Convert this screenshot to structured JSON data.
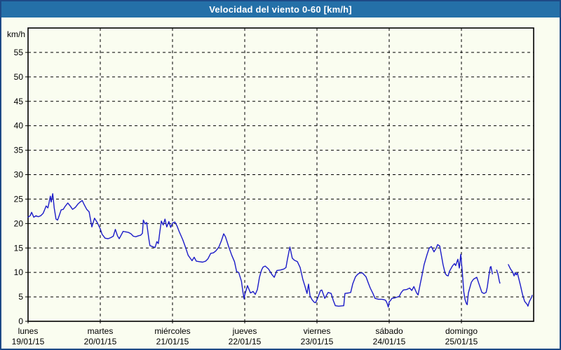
{
  "window": {
    "title": "Velocidad del viento 0-60 [km/h]"
  },
  "colors": {
    "titlebar_blue": "#2470a8",
    "window_border_navy": "#1e4a86",
    "background_ivory": "#fafdf0",
    "line_blue": "#1b1bc8",
    "grid_black": "#000000",
    "title_text": "#ffffff"
  },
  "chart_data": {
    "type": "line",
    "title": "Velocidad del viento 0-60 [km/h]",
    "y_unit_label": "km/h",
    "ylim": [
      0,
      60
    ],
    "y_tick_step": 5,
    "y_tick_labels": [
      0,
      5,
      10,
      15,
      20,
      25,
      30,
      35,
      40,
      45,
      50,
      55
    ],
    "grid": "dashed",
    "legend": "none",
    "line_color": "#1b1bc8",
    "x_unit": "hours since lunes 19/01/15 00:00",
    "x_range_hours": [
      0,
      168
    ],
    "x_axis_days": [
      {
        "label": "lunes",
        "date": "19/01/15"
      },
      {
        "label": "martes",
        "date": "20/01/15"
      },
      {
        "label": "miércoles",
        "date": "21/01/15"
      },
      {
        "label": "jueves",
        "date": "22/01/15"
      },
      {
        "label": "viernes",
        "date": "23/01/15"
      },
      {
        "label": "sábado",
        "date": "24/01/15"
      },
      {
        "label": "domingo",
        "date": "25/01/15"
      }
    ],
    "segments": [
      [
        [
          0,
          21.3
        ],
        [
          0.7,
          21.6
        ],
        [
          1.2,
          22.3
        ],
        [
          1.9,
          21.3
        ],
        [
          2.6,
          21.6
        ],
        [
          3.4,
          21.4
        ],
        [
          4.2,
          21.6
        ],
        [
          5.0,
          22.1
        ],
        [
          5.5,
          22.8
        ],
        [
          6.0,
          23.6
        ],
        [
          6.6,
          23.2
        ],
        [
          7.0,
          24.3
        ],
        [
          7.4,
          25.6
        ],
        [
          7.7,
          24.4
        ],
        [
          8.2,
          26.1
        ],
        [
          8.7,
          23.2
        ],
        [
          9.3,
          20.9
        ],
        [
          9.8,
          20.7
        ],
        [
          10.4,
          21.7
        ],
        [
          11.0,
          22.8
        ],
        [
          11.7,
          22.9
        ],
        [
          12.3,
          23.5
        ],
        [
          13.2,
          24.2
        ],
        [
          14.0,
          23.6
        ],
        [
          14.8,
          22.9
        ],
        [
          15.7,
          23.3
        ],
        [
          16.6,
          24.0
        ],
        [
          17.5,
          24.5
        ],
        [
          18.0,
          24.7
        ],
        [
          18.7,
          23.8
        ],
        [
          19.5,
          22.9
        ],
        [
          20.3,
          22.4
        ],
        [
          21.2,
          19.3
        ],
        [
          22.1,
          21.1
        ],
        [
          23.0,
          20.2
        ],
        [
          24.0,
          18.9
        ],
        [
          24.6,
          17.8
        ],
        [
          25.6,
          17.0
        ],
        [
          26.6,
          16.9
        ],
        [
          27.4,
          17.1
        ],
        [
          28.3,
          17.4
        ],
        [
          29.0,
          18.8
        ],
        [
          29.7,
          17.5
        ],
        [
          30.3,
          16.9
        ],
        [
          31.0,
          17.7
        ],
        [
          31.6,
          18.4
        ],
        [
          32.4,
          18.3
        ],
        [
          33.3,
          18.2
        ],
        [
          34.2,
          17.9
        ],
        [
          35.0,
          17.4
        ],
        [
          35.8,
          17.3
        ],
        [
          36.7,
          17.5
        ],
        [
          37.4,
          17.6
        ],
        [
          38.0,
          18.0
        ],
        [
          38.3,
          20.7
        ],
        [
          38.9,
          19.9
        ],
        [
          39.4,
          20.2
        ],
        [
          40.1,
          17.0
        ],
        [
          40.5,
          15.5
        ],
        [
          41.3,
          15.3
        ],
        [
          42.2,
          15.1
        ],
        [
          42.8,
          16.3
        ],
        [
          43.3,
          15.9
        ],
        [
          43.8,
          18.4
        ],
        [
          44.3,
          20.5
        ],
        [
          44.9,
          19.7
        ],
        [
          45.5,
          20.9
        ],
        [
          46.1,
          19.3
        ],
        [
          46.8,
          20.4
        ],
        [
          47.4,
          19.2
        ],
        [
          48.0,
          20.1
        ],
        [
          48.8,
          20.3
        ],
        [
          49.5,
          19.5
        ],
        [
          50.2,
          18.4
        ],
        [
          51.4,
          16.7
        ],
        [
          52.4,
          15.0
        ],
        [
          53.2,
          13.5
        ],
        [
          53.9,
          12.9
        ],
        [
          54.5,
          12.4
        ],
        [
          55.2,
          13.1
        ],
        [
          55.9,
          12.3
        ],
        [
          56.9,
          12.2
        ],
        [
          58.0,
          12.1
        ],
        [
          59.0,
          12.3
        ],
        [
          59.8,
          12.8
        ],
        [
          60.7,
          13.9
        ],
        [
          61.6,
          14.0
        ],
        [
          62.4,
          14.4
        ],
        [
          63.4,
          15.2
        ],
        [
          64.2,
          16.4
        ],
        [
          65.0,
          17.9
        ],
        [
          65.6,
          17.3
        ],
        [
          66.6,
          15.4
        ],
        [
          67.7,
          13.5
        ],
        [
          68.6,
          12.2
        ],
        [
          69.3,
          10.2
        ],
        [
          70.0,
          10.0
        ],
        [
          70.9,
          8.2
        ],
        [
          71.4,
          6.0
        ],
        [
          71.8,
          4.6
        ],
        [
          72.0,
          5.4
        ],
        [
          72.9,
          7.3
        ],
        [
          73.9,
          5.8
        ],
        [
          74.8,
          6.1
        ],
        [
          75.5,
          5.5
        ],
        [
          76.2,
          6.5
        ],
        [
          76.9,
          9.0
        ],
        [
          77.6,
          10.5
        ],
        [
          78.1,
          11.1
        ],
        [
          78.8,
          11.3
        ],
        [
          79.9,
          10.7
        ],
        [
          81.1,
          9.5
        ],
        [
          81.8,
          9.0
        ],
        [
          82.7,
          10.4
        ],
        [
          83.9,
          10.5
        ],
        [
          85.0,
          10.7
        ],
        [
          85.7,
          11.0
        ],
        [
          86.2,
          12.7
        ],
        [
          87.0,
          15.2
        ],
        [
          87.8,
          12.9
        ],
        [
          88.5,
          12.5
        ],
        [
          89.5,
          12.2
        ],
        [
          90.4,
          11.0
        ],
        [
          91.3,
          8.6
        ],
        [
          92.0,
          7.2
        ],
        [
          92.7,
          5.7
        ],
        [
          93.2,
          7.6
        ],
        [
          93.7,
          5.2
        ],
        [
          94.4,
          4.4
        ],
        [
          95.1,
          3.9
        ],
        [
          95.5,
          3.8
        ],
        [
          96.0,
          4.4
        ],
        [
          97.2,
          6.3
        ],
        [
          97.6,
          6.4
        ],
        [
          98.6,
          4.7
        ],
        [
          99.7,
          5.9
        ],
        [
          100.7,
          5.7
        ],
        [
          101.4,
          4.3
        ],
        [
          102.1,
          3.2
        ],
        [
          103.2,
          3.1
        ],
        [
          104.9,
          3.2
        ],
        [
          105.3,
          5.7
        ],
        [
          106.5,
          5.8
        ],
        [
          107.2,
          5.9
        ],
        [
          107.9,
          7.7
        ],
        [
          108.8,
          9.1
        ],
        [
          109.5,
          9.6
        ],
        [
          110.2,
          9.9
        ],
        [
          111.1,
          9.9
        ],
        [
          112.3,
          9.1
        ],
        [
          113.0,
          7.9
        ],
        [
          113.7,
          6.8
        ],
        [
          114.6,
          5.7
        ],
        [
          115.3,
          4.7
        ],
        [
          116.5,
          4.5
        ],
        [
          117.7,
          4.5
        ],
        [
          118.4,
          4.4
        ],
        [
          118.8,
          4.3
        ],
        [
          119.3,
          3.7
        ],
        [
          119.7,
          2.9
        ],
        [
          120.0,
          4.0
        ],
        [
          120.5,
          4.3
        ],
        [
          120.9,
          4.7
        ],
        [
          121.9,
          4.8
        ],
        [
          123.3,
          5.1
        ],
        [
          124.0,
          5.9
        ],
        [
          124.7,
          6.4
        ],
        [
          125.8,
          6.5
        ],
        [
          126.8,
          6.8
        ],
        [
          127.5,
          6.3
        ],
        [
          128.2,
          7.1
        ],
        [
          129.1,
          5.8
        ],
        [
          129.6,
          5.4
        ],
        [
          130.3,
          7.6
        ],
        [
          130.9,
          9.4
        ],
        [
          131.6,
          11.6
        ],
        [
          132.6,
          13.7
        ],
        [
          133.3,
          15.0
        ],
        [
          134.0,
          15.3
        ],
        [
          134.9,
          14.2
        ],
        [
          135.6,
          14.9
        ],
        [
          136.1,
          15.7
        ],
        [
          136.8,
          15.4
        ],
        [
          137.2,
          14.0
        ],
        [
          137.9,
          11.6
        ],
        [
          138.6,
          9.8
        ],
        [
          139.1,
          9.4
        ],
        [
          139.6,
          9.3
        ],
        [
          140.0,
          10.2
        ],
        [
          141.0,
          11.3
        ],
        [
          141.7,
          11.8
        ],
        [
          142.1,
          11.4
        ],
        [
          142.8,
          12.7
        ],
        [
          143.3,
          10.9
        ],
        [
          143.8,
          13.7
        ],
        [
          144.3,
          10.0
        ],
        [
          144.8,
          6.0
        ],
        [
          145.2,
          4.5
        ],
        [
          145.6,
          3.7
        ],
        [
          145.9,
          3.4
        ],
        [
          146.3,
          5.8
        ],
        [
          147.3,
          8.0
        ],
        [
          148.0,
          8.6
        ],
        [
          149.1,
          9.0
        ],
        [
          149.8,
          7.7
        ],
        [
          150.8,
          5.9
        ],
        [
          151.5,
          5.7
        ],
        [
          152.2,
          5.9
        ],
        [
          152.6,
          7.0
        ],
        [
          153.1,
          9.3
        ],
        [
          153.6,
          11.1
        ],
        [
          153.8,
          11.2
        ],
        [
          154.3,
          9.7
        ]
      ],
      [
        [
          155.7,
          10.5
        ],
        [
          156.1,
          9.8
        ],
        [
          156.6,
          8.2
        ],
        [
          156.8,
          7.8
        ]
      ],
      [
        [
          159.6,
          11.6
        ],
        [
          160.3,
          10.7
        ],
        [
          161.0,
          10.1
        ],
        [
          161.5,
          9.3
        ],
        [
          161.9,
          10.0
        ],
        [
          162.2,
          9.5
        ],
        [
          162.6,
          9.9
        ],
        [
          163.6,
          7.4
        ],
        [
          164.3,
          5.5
        ],
        [
          165.0,
          4.1
        ],
        [
          165.9,
          3.4
        ],
        [
          166.1,
          3.1
        ],
        [
          166.6,
          4.1
        ],
        [
          167.3,
          4.9
        ],
        [
          167.5,
          5.3
        ]
      ]
    ]
  }
}
